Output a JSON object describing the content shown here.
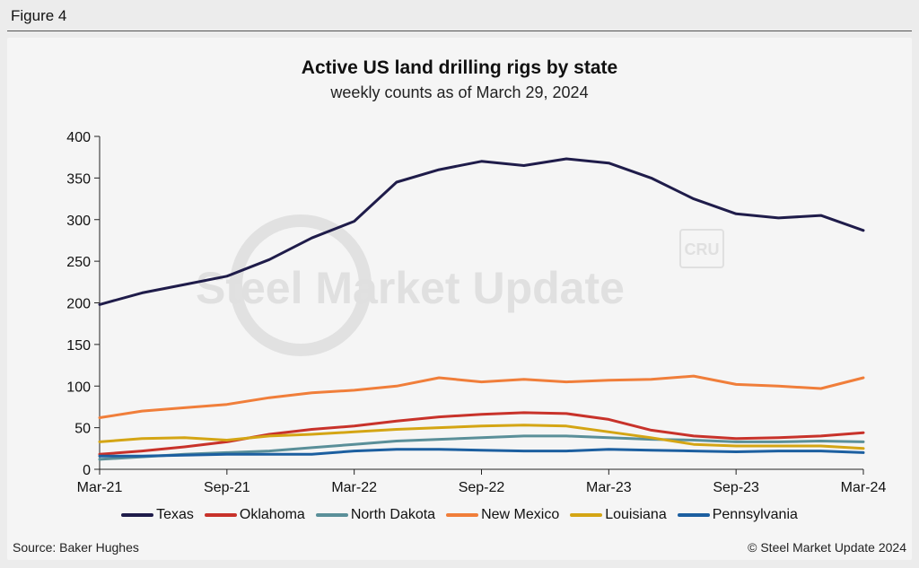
{
  "figure_label": "Figure 4",
  "footer": {
    "source": "Source: Baker Hughes",
    "copyright": "© Steel Market Update 2024"
  },
  "watermark": "Steel Market Update",
  "watermark_badge": "CRU",
  "chart_data": {
    "type": "line",
    "title": "Active US land drilling rigs by state",
    "subtitle": "weekly counts as of March 29, 2024",
    "xlabel": "",
    "ylabel": "",
    "ylim": [
      0,
      400
    ],
    "yticks": [
      0,
      50,
      100,
      150,
      200,
      250,
      300,
      350,
      400
    ],
    "xticks": [
      "Mar-21",
      "Sep-21",
      "Mar-22",
      "Sep-22",
      "Mar-23",
      "Sep-23",
      "Mar-24"
    ],
    "x": [
      "Mar-21",
      "May-21",
      "Jul-21",
      "Sep-21",
      "Nov-21",
      "Jan-22",
      "Mar-22",
      "May-22",
      "Jul-22",
      "Sep-22",
      "Nov-22",
      "Jan-23",
      "Mar-23",
      "May-23",
      "Jul-23",
      "Sep-23",
      "Nov-23",
      "Jan-24",
      "Mar-24"
    ],
    "grid": false,
    "legend_position": "bottom",
    "series": [
      {
        "name": "Texas",
        "color": "#1f1c4a",
        "values": [
          198,
          212,
          222,
          232,
          252,
          278,
          298,
          345,
          360,
          370,
          365,
          373,
          368,
          350,
          325,
          307,
          302,
          305,
          287
        ]
      },
      {
        "name": "Oklahoma",
        "color": "#c8322a",
        "values": [
          18,
          22,
          27,
          33,
          42,
          48,
          52,
          58,
          63,
          66,
          68,
          67,
          60,
          47,
          40,
          37,
          38,
          40,
          44
        ]
      },
      {
        "name": "North Dakota",
        "color": "#5a8f99",
        "values": [
          12,
          15,
          18,
          20,
          22,
          26,
          30,
          34,
          36,
          38,
          40,
          40,
          38,
          36,
          35,
          33,
          33,
          34,
          33
        ]
      },
      {
        "name": "New Mexico",
        "color": "#f07e3a",
        "values": [
          62,
          70,
          74,
          78,
          86,
          92,
          95,
          100,
          110,
          105,
          108,
          105,
          107,
          108,
          112,
          102,
          100,
          97,
          110
        ]
      },
      {
        "name": "Louisiana",
        "color": "#d4a514",
        "values": [
          33,
          37,
          38,
          35,
          40,
          42,
          45,
          48,
          50,
          52,
          53,
          52,
          45,
          38,
          30,
          28,
          28,
          28,
          25
        ]
      },
      {
        "name": "Pennsylvania",
        "color": "#1c5fa0",
        "values": [
          16,
          16,
          17,
          18,
          18,
          18,
          22,
          24,
          24,
          23,
          22,
          22,
          24,
          23,
          22,
          21,
          22,
          22,
          20
        ]
      }
    ]
  }
}
